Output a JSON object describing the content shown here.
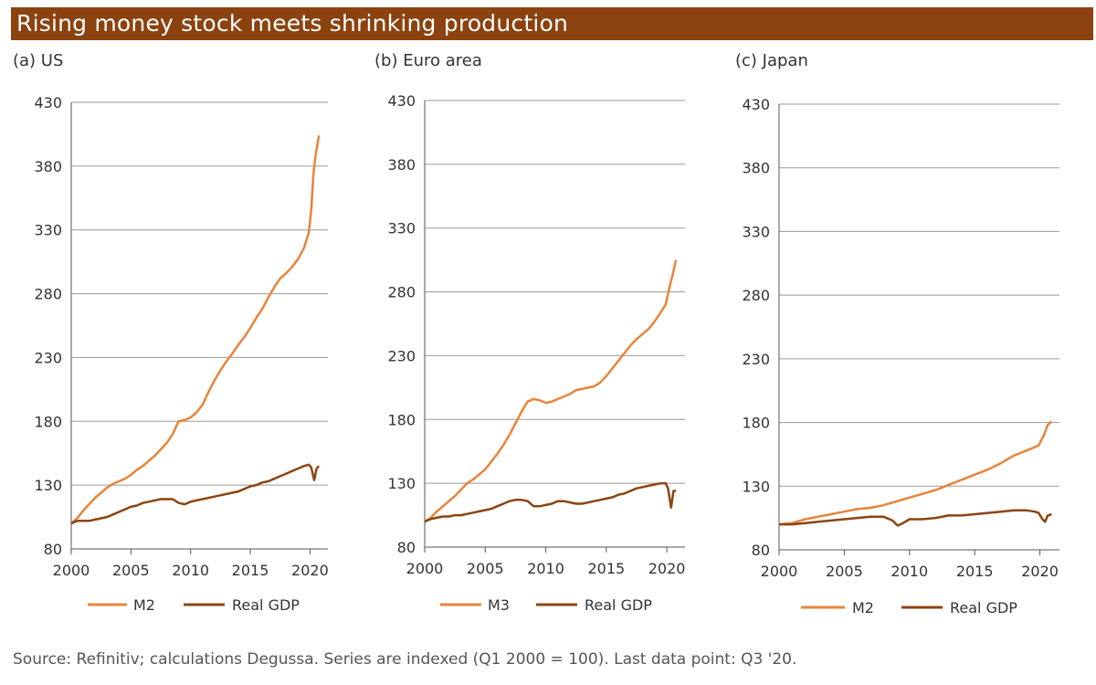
{
  "title": "Rising money stock meets shrinking production",
  "source": "Source: Refinitiv; calculations Degussa. Series are indexed (Q1 2000 = 100). Last data point: Q3 '20.",
  "colors": {
    "title_bg": "#8b420f",
    "money": "#e8843a",
    "gdp": "#8b4513",
    "grid": "#9a9a9a"
  },
  "chart_data": [
    {
      "type": "line",
      "title": "(a) US",
      "ylim": [
        80,
        430
      ],
      "yticks": [
        80,
        130,
        180,
        230,
        280,
        330,
        380,
        430
      ],
      "xlim": [
        2000,
        2021.5
      ],
      "xticks": [
        2000,
        2005,
        2010,
        2015,
        2020
      ],
      "grid": true,
      "legend_position": "bottom",
      "series": [
        {
          "name": "M2",
          "color": "#e8843a",
          "points": [
            [
              2000,
              100
            ],
            [
              2000.5,
              104
            ],
            [
              2001,
              110
            ],
            [
              2001.5,
              115
            ],
            [
              2002,
              120
            ],
            [
              2002.5,
              124
            ],
            [
              2003,
              128
            ],
            [
              2003.5,
              131
            ],
            [
              2004,
              133
            ],
            [
              2004.5,
              135
            ],
            [
              2005,
              138
            ],
            [
              2005.5,
              142
            ],
            [
              2006,
              145
            ],
            [
              2006.5,
              149
            ],
            [
              2007,
              153
            ],
            [
              2007.5,
              158
            ],
            [
              2008,
              163
            ],
            [
              2008.5,
              170
            ],
            [
              2009,
              180
            ],
            [
              2009.5,
              181
            ],
            [
              2010,
              183
            ],
            [
              2010.5,
              187
            ],
            [
              2011,
              193
            ],
            [
              2011.5,
              203
            ],
            [
              2012,
              212
            ],
            [
              2012.5,
              220
            ],
            [
              2013,
              227
            ],
            [
              2013.5,
              233
            ],
            [
              2014,
              240
            ],
            [
              2014.5,
              246
            ],
            [
              2015,
              253
            ],
            [
              2015.5,
              261
            ],
            [
              2016,
              268
            ],
            [
              2016.5,
              277
            ],
            [
              2017,
              285
            ],
            [
              2017.5,
              292
            ],
            [
              2018,
              296
            ],
            [
              2018.5,
              301
            ],
            [
              2019,
              307
            ],
            [
              2019.5,
              316
            ],
            [
              2019.9,
              328
            ],
            [
              2020.1,
              345
            ],
            [
              2020.3,
              375
            ],
            [
              2020.5,
              390
            ],
            [
              2020.75,
              404
            ]
          ]
        },
        {
          "name": "Real GDP",
          "color": "#8b4513",
          "points": [
            [
              2000,
              100
            ],
            [
              2000.5,
              102
            ],
            [
              2001,
              102
            ],
            [
              2001.5,
              102
            ],
            [
              2002,
              103
            ],
            [
              2002.5,
              104
            ],
            [
              2003,
              105
            ],
            [
              2003.5,
              107
            ],
            [
              2004,
              109
            ],
            [
              2004.5,
              111
            ],
            [
              2005,
              113
            ],
            [
              2005.5,
              114
            ],
            [
              2006,
              116
            ],
            [
              2006.5,
              117
            ],
            [
              2007,
              118
            ],
            [
              2007.5,
              119
            ],
            [
              2008,
              119
            ],
            [
              2008.5,
              119
            ],
            [
              2009,
              116
            ],
            [
              2009.5,
              115
            ],
            [
              2010,
              117
            ],
            [
              2010.5,
              118
            ],
            [
              2011,
              119
            ],
            [
              2011.5,
              120
            ],
            [
              2012,
              121
            ],
            [
              2012.5,
              122
            ],
            [
              2013,
              123
            ],
            [
              2013.5,
              124
            ],
            [
              2014,
              125
            ],
            [
              2014.5,
              127
            ],
            [
              2015,
              129
            ],
            [
              2015.5,
              130
            ],
            [
              2016,
              132
            ],
            [
              2016.5,
              133
            ],
            [
              2017,
              135
            ],
            [
              2017.5,
              137
            ],
            [
              2018,
              139
            ],
            [
              2018.5,
              141
            ],
            [
              2019,
              143
            ],
            [
              2019.5,
              145
            ],
            [
              2019.9,
              146
            ],
            [
              2020.1,
              144
            ],
            [
              2020.35,
              134
            ],
            [
              2020.55,
              143
            ],
            [
              2020.75,
              145
            ]
          ]
        }
      ]
    },
    {
      "type": "line",
      "title": "(b) Euro area",
      "ylim": [
        80,
        430
      ],
      "yticks": [
        80,
        130,
        180,
        230,
        280,
        330,
        380,
        430
      ],
      "xlim": [
        2000,
        2021.5
      ],
      "xticks": [
        2000,
        2005,
        2010,
        2015,
        2020
      ],
      "grid": true,
      "legend_position": "bottom",
      "series": [
        {
          "name": "M3",
          "color": "#e8843a",
          "points": [
            [
              2000,
              100
            ],
            [
              2000.5,
              103
            ],
            [
              2001,
              108
            ],
            [
              2001.5,
              112
            ],
            [
              2002,
              116
            ],
            [
              2002.5,
              120
            ],
            [
              2003,
              125
            ],
            [
              2003.5,
              130
            ],
            [
              2004,
              133
            ],
            [
              2004.5,
              137
            ],
            [
              2005,
              141
            ],
            [
              2005.5,
              147
            ],
            [
              2006,
              153
            ],
            [
              2006.5,
              160
            ],
            [
              2007,
              168
            ],
            [
              2007.5,
              177
            ],
            [
              2008,
              186
            ],
            [
              2008.5,
              194
            ],
            [
              2009,
              196
            ],
            [
              2009.5,
              195
            ],
            [
              2010,
              193
            ],
            [
              2010.5,
              194
            ],
            [
              2011,
              196
            ],
            [
              2011.5,
              198
            ],
            [
              2012,
              200
            ],
            [
              2012.5,
              203
            ],
            [
              2013,
              204
            ],
            [
              2013.5,
              205
            ],
            [
              2014,
              206
            ],
            [
              2014.5,
              209
            ],
            [
              2015,
              214
            ],
            [
              2015.5,
              220
            ],
            [
              2016,
              226
            ],
            [
              2016.5,
              232
            ],
            [
              2017,
              238
            ],
            [
              2017.5,
              243
            ],
            [
              2018,
              247
            ],
            [
              2018.5,
              251
            ],
            [
              2019,
              257
            ],
            [
              2019.5,
              264
            ],
            [
              2019.9,
              270
            ],
            [
              2020.2,
              283
            ],
            [
              2020.5,
              294
            ],
            [
              2020.75,
              305
            ]
          ]
        },
        {
          "name": "Real GDP",
          "color": "#8b4513",
          "points": [
            [
              2000,
              100
            ],
            [
              2000.5,
              102
            ],
            [
              2001,
              103
            ],
            [
              2001.5,
              104
            ],
            [
              2002,
              104
            ],
            [
              2002.5,
              105
            ],
            [
              2003,
              105
            ],
            [
              2003.5,
              106
            ],
            [
              2004,
              107
            ],
            [
              2004.5,
              108
            ],
            [
              2005,
              109
            ],
            [
              2005.5,
              110
            ],
            [
              2006,
              112
            ],
            [
              2006.5,
              114
            ],
            [
              2007,
              116
            ],
            [
              2007.5,
              117
            ],
            [
              2008,
              117
            ],
            [
              2008.5,
              116
            ],
            [
              2009,
              112
            ],
            [
              2009.5,
              112
            ],
            [
              2010,
              113
            ],
            [
              2010.5,
              114
            ],
            [
              2011,
              116
            ],
            [
              2011.5,
              116
            ],
            [
              2012,
              115
            ],
            [
              2012.5,
              114
            ],
            [
              2013,
              114
            ],
            [
              2013.5,
              115
            ],
            [
              2014,
              116
            ],
            [
              2014.5,
              117
            ],
            [
              2015,
              118
            ],
            [
              2015.5,
              119
            ],
            [
              2016,
              121
            ],
            [
              2016.5,
              122
            ],
            [
              2017,
              124
            ],
            [
              2017.5,
              126
            ],
            [
              2018,
              127
            ],
            [
              2018.5,
              128
            ],
            [
              2019,
              129
            ],
            [
              2019.5,
              130
            ],
            [
              2019.9,
              130
            ],
            [
              2020.1,
              126
            ],
            [
              2020.35,
              111
            ],
            [
              2020.55,
              124
            ],
            [
              2020.75,
              124
            ]
          ]
        }
      ]
    },
    {
      "type": "line",
      "title": "(c) Japan",
      "ylim": [
        80,
        430
      ],
      "yticks": [
        80,
        130,
        180,
        230,
        280,
        330,
        380,
        430
      ],
      "xlim": [
        2000,
        2021.5
      ],
      "xticks": [
        2000,
        2005,
        2010,
        2015,
        2020
      ],
      "grid": true,
      "legend_position": "bottom",
      "series": [
        {
          "name": "M2",
          "color": "#e8843a",
          "points": [
            [
              2000,
              100
            ],
            [
              2001,
              101
            ],
            [
              2002,
              104
            ],
            [
              2003,
              106
            ],
            [
              2004,
              108
            ],
            [
              2005,
              110
            ],
            [
              2006,
              112
            ],
            [
              2007,
              113
            ],
            [
              2008,
              115
            ],
            [
              2009,
              118
            ],
            [
              2010,
              121
            ],
            [
              2011,
              124
            ],
            [
              2012,
              127
            ],
            [
              2013,
              131
            ],
            [
              2014,
              135
            ],
            [
              2015,
              139
            ],
            [
              2016,
              143
            ],
            [
              2017,
              148
            ],
            [
              2018,
              154
            ],
            [
              2019,
              158
            ],
            [
              2019.9,
              162
            ],
            [
              2020.3,
              170
            ],
            [
              2020.6,
              178
            ],
            [
              2020.9,
              181
            ]
          ]
        },
        {
          "name": "Real GDP",
          "color": "#8b4513",
          "points": [
            [
              2000,
              100
            ],
            [
              2001,
              100
            ],
            [
              2002,
              101
            ],
            [
              2003,
              102
            ],
            [
              2004,
              103
            ],
            [
              2005,
              104
            ],
            [
              2006,
              105
            ],
            [
              2007,
              106
            ],
            [
              2008,
              106
            ],
            [
              2008.7,
              103
            ],
            [
              2009.1,
              99
            ],
            [
              2009.5,
              101
            ],
            [
              2010,
              104
            ],
            [
              2011,
              104
            ],
            [
              2012,
              105
            ],
            [
              2013,
              107
            ],
            [
              2014,
              107
            ],
            [
              2015,
              108
            ],
            [
              2016,
              109
            ],
            [
              2017,
              110
            ],
            [
              2018,
              111
            ],
            [
              2019,
              111
            ],
            [
              2019.6,
              110
            ],
            [
              2019.9,
              109
            ],
            [
              2020.2,
              104
            ],
            [
              2020.4,
              102
            ],
            [
              2020.6,
              107
            ],
            [
              2020.9,
              108
            ]
          ]
        }
      ]
    }
  ]
}
